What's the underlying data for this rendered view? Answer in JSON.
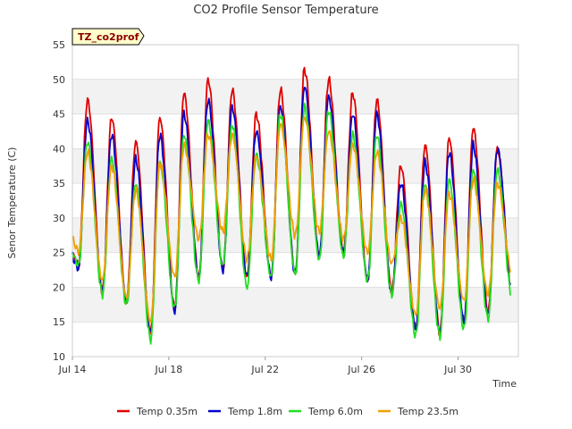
{
  "chart_data": {
    "type": "line",
    "title": "CO2 Profile Sensor Temperature",
    "xlabel": "Time",
    "ylabel": "Senor Temperature (C)",
    "tag": "TZ_co2prof",
    "x_ticks": [
      "Jul 14",
      "Jul 18",
      "Jul 22",
      "Jul 26",
      "Jul 30"
    ],
    "y_ticks": [
      10,
      15,
      20,
      25,
      30,
      35,
      40,
      45,
      50,
      55
    ],
    "ylim": [
      10,
      55
    ],
    "x_domain": [
      "2024-07-14",
      "2024-08-01T12:00"
    ],
    "grid": true,
    "legend_position": "bottom",
    "series": [
      {
        "name": "Temp 0.35m",
        "color": "#e00000"
      },
      {
        "name": "Temp 1.8m",
        "color": "#0000cc"
      },
      {
        "name": "Temp 6.0m",
        "color": "#22dd22"
      },
      {
        "name": "Temp 23.5m",
        "color": "#f0a000"
      }
    ],
    "daily": {
      "dates": [
        "2024-07-14",
        "2024-07-15",
        "2024-07-16",
        "2024-07-17",
        "2024-07-18",
        "2024-07-19",
        "2024-07-20",
        "2024-07-21",
        "2024-07-22",
        "2024-07-23",
        "2024-07-24",
        "2024-07-25",
        "2024-07-26",
        "2024-07-27",
        "2024-07-28",
        "2024-07-29",
        "2024-07-30",
        "2024-07-31"
      ],
      "min": {
        "Temp 0.35m": [
          23,
          19.5,
          18,
          13.5,
          17,
          21.5,
          22.5,
          21.5,
          21.5,
          22,
          24.5,
          25,
          21,
          19.5,
          14,
          13.5,
          15,
          16.5
        ],
        "Temp 1.8m": [
          22.5,
          19.5,
          18,
          13.5,
          16.5,
          21.5,
          22.5,
          21.5,
          21.5,
          22,
          24.5,
          25,
          21,
          19,
          14,
          13.5,
          15,
          16
        ],
        "Temp 6.0m": [
          23,
          19,
          17.5,
          12.5,
          17,
          21,
          23,
          20,
          21.5,
          22,
          24,
          24.5,
          21,
          19,
          13,
          13,
          14,
          15.5
        ],
        "Temp 23.5m": [
          25,
          21,
          18.5,
          15,
          21.5,
          27,
          28,
          24,
          24,
          27.5,
          28,
          27,
          25,
          23.5,
          16,
          17,
          18,
          19
        ]
      },
      "max": {
        "Temp 0.35m": [
          47,
          44.5,
          41,
          44.5,
          48,
          50,
          48.5,
          45,
          48.5,
          51.5,
          50,
          48,
          47,
          37.5,
          40.5,
          41.5,
          43,
          40
        ],
        "Temp 1.8m": [
          44,
          42,
          38.5,
          42,
          45,
          47,
          46,
          42.5,
          46,
          49,
          47.5,
          45,
          45,
          35,
          38,
          39.5,
          40.5,
          40
        ],
        "Temp 6.0m": [
          41,
          38.5,
          35,
          38,
          42,
          44,
          43.5,
          39,
          45,
          46,
          45.5,
          42,
          42,
          32,
          35,
          35.5,
          37,
          37
        ],
        "Temp 23.5m": [
          39.5,
          37.5,
          34,
          38,
          40.5,
          42,
          42,
          39,
          43.5,
          44.5,
          42.5,
          40.5,
          39.5,
          30,
          34,
          33.5,
          35.5,
          35
        ]
      }
    }
  }
}
